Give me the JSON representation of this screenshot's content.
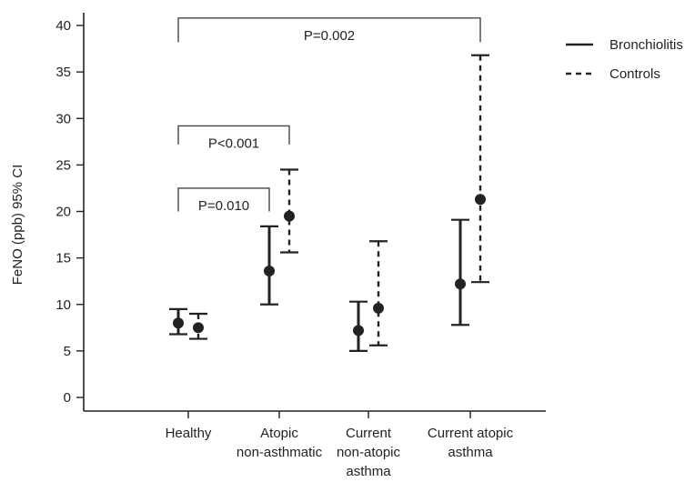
{
  "chart_data": {
    "type": "errorbar",
    "title": "",
    "xlabel": "",
    "ylabel": "FeNO (ppb) 95% CI",
    "ylim": [
      0,
      40
    ],
    "yticks": [
      0,
      5,
      10,
      15,
      20,
      25,
      30,
      35,
      40
    ],
    "grid": false,
    "legend_position": "top-right",
    "categories": [
      [
        "Healthy"
      ],
      [
        "Atopic",
        "non-asthmatic"
      ],
      [
        "Current",
        "non-atopic",
        "asthma"
      ],
      [
        "Current atopic",
        "asthma"
      ]
    ],
    "series": [
      {
        "name": "Bronchiolitis",
        "line_style": "solid",
        "points": [
          {
            "mean": 8.0,
            "lower": 6.8,
            "upper": 9.5
          },
          {
            "mean": 13.6,
            "lower": 10.0,
            "upper": 18.4
          },
          {
            "mean": 7.2,
            "lower": 5.0,
            "upper": 10.3
          },
          {
            "mean": 12.2,
            "lower": 7.8,
            "upper": 19.1
          }
        ]
      },
      {
        "name": "Controls",
        "line_style": "dashed",
        "points": [
          {
            "mean": 7.5,
            "lower": 6.3,
            "upper": 9.0
          },
          {
            "mean": 19.5,
            "lower": 15.6,
            "upper": 24.5
          },
          {
            "mean": 9.6,
            "lower": 5.6,
            "upper": 16.8
          },
          {
            "mean": 21.3,
            "lower": 12.4,
            "upper": 36.8
          }
        ]
      }
    ],
    "annotations": [
      {
        "label": "P=0.010",
        "from": [
          0,
          0
        ],
        "to": [
          1,
          0
        ],
        "bracket_y": 22.5,
        "drop_to": 20.0
      },
      {
        "label": "P<0.001",
        "from": [
          0,
          0
        ],
        "to": [
          1,
          1
        ],
        "bracket_y": 29.2,
        "drop_to": 27.2
      },
      {
        "label": "P=0.002",
        "from": [
          0,
          0
        ],
        "to": [
          3,
          1
        ],
        "bracket_y": 40.8,
        "drop_to": 38.2
      }
    ]
  }
}
